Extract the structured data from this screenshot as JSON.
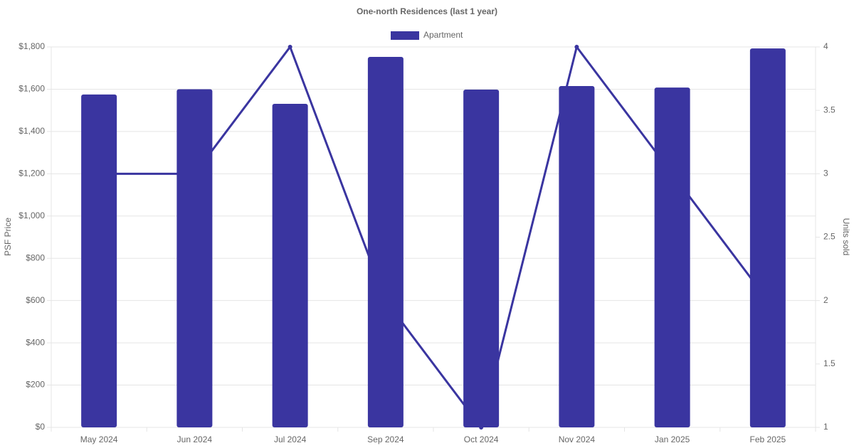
{
  "chart_data": {
    "type": "bar-line",
    "title": "One-north Residences (last 1 year)",
    "categories": [
      "May 2024",
      "Jun 2024",
      "Jul 2024",
      "Sep 2024",
      "Oct 2024",
      "Nov 2024",
      "Jan 2025",
      "Feb 2025"
    ],
    "series": [
      {
        "name": "Apartment",
        "type": "bar",
        "color": "#3a35a0",
        "values": [
          1575,
          1600,
          1531,
          1753,
          1598,
          1615,
          1608,
          1793
        ]
      },
      {
        "type": "line",
        "color": "#3a35a0",
        "axis": "y2",
        "values": [
          3,
          3,
          4,
          2,
          1,
          4,
          3,
          2
        ]
      }
    ],
    "ylabel": "PSF Price",
    "y2label": "Units sold",
    "ylim": [
      0,
      1800
    ],
    "yticks": [
      {
        "value": 0,
        "label": "$0"
      },
      {
        "value": 200,
        "label": "$200"
      },
      {
        "value": 400,
        "label": "$400"
      },
      {
        "value": 600,
        "label": "$600"
      },
      {
        "value": 800,
        "label": "$800"
      },
      {
        "value": 1000,
        "label": "$1,000"
      },
      {
        "value": 1200,
        "label": "$1,200"
      },
      {
        "value": 1400,
        "label": "$1,400"
      },
      {
        "value": 1600,
        "label": "$1,600"
      },
      {
        "value": 1800,
        "label": "$1,800"
      }
    ],
    "y2lim": [
      1,
      4
    ],
    "y2ticks": [
      1,
      1.5,
      2,
      2.5,
      3,
      3.5,
      4
    ],
    "grid": true,
    "legend": "top"
  }
}
